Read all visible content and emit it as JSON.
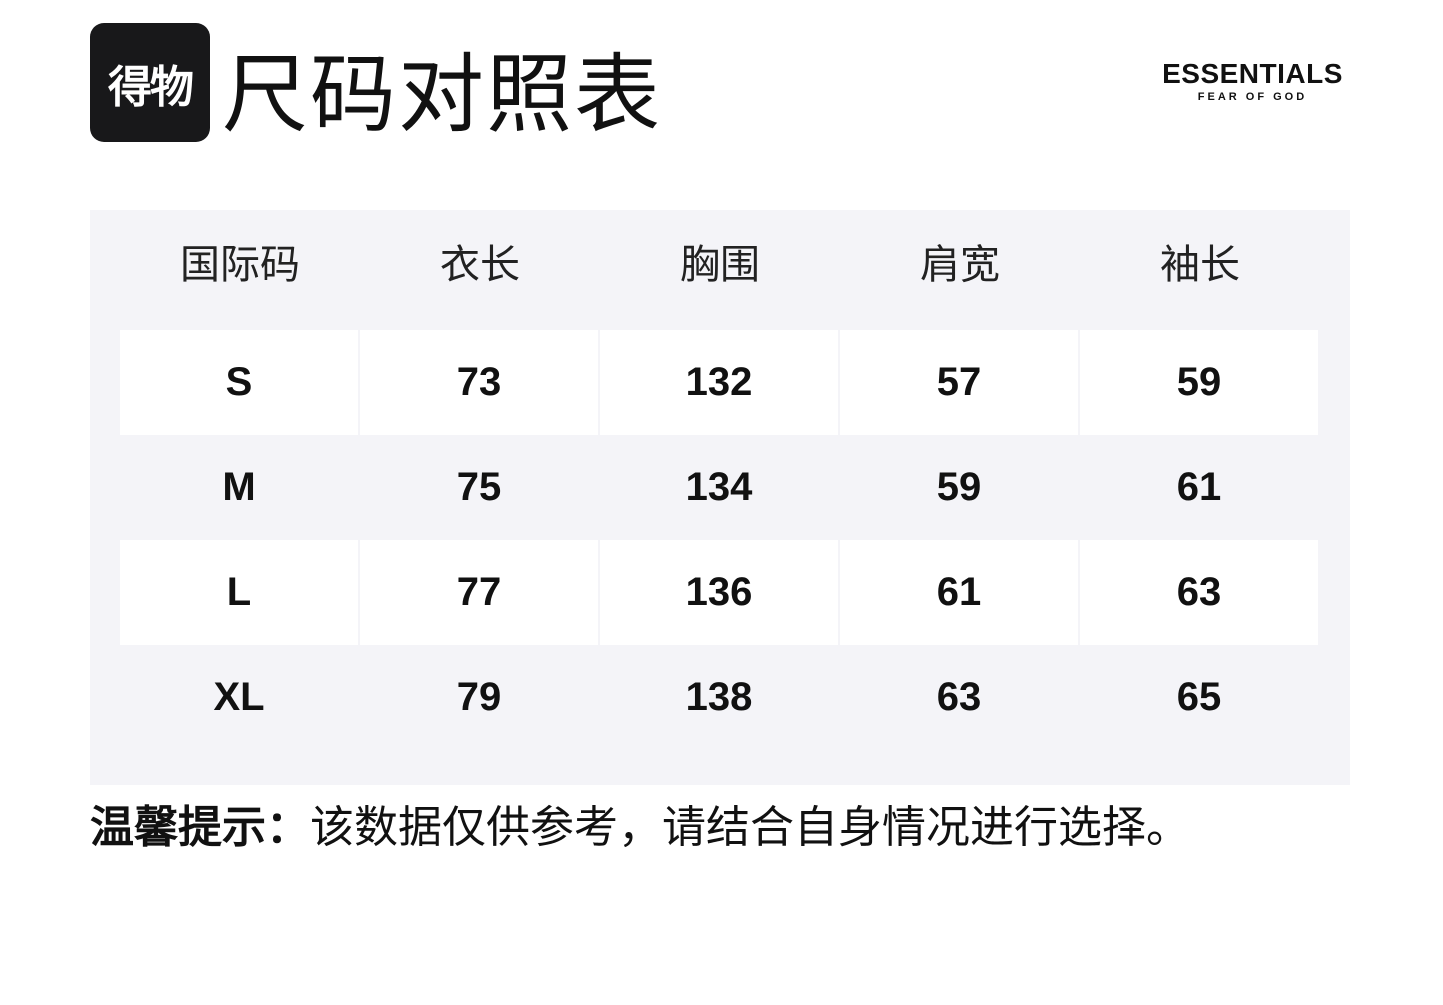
{
  "logo": {
    "text": "得物"
  },
  "title": "尺码对照表",
  "brand": {
    "name": "ESSENTIALS",
    "tagline": "FEAR OF GOD"
  },
  "table": {
    "headers": [
      "国际码",
      "衣长",
      "胸围",
      "肩宽",
      "袖长"
    ],
    "rows": [
      [
        "S",
        "73",
        "132",
        "57",
        "59"
      ],
      [
        "M",
        "75",
        "134",
        "59",
        "61"
      ],
      [
        "L",
        "77",
        "136",
        "61",
        "63"
      ],
      [
        "XL",
        "79",
        "138",
        "63",
        "65"
      ]
    ]
  },
  "tip": {
    "label": "温馨提示：",
    "text": "该数据仅供参考，请结合自身情况进行选择。"
  },
  "colors": {
    "panel": "#f4f4f8",
    "logo_bg": "#18181a"
  }
}
